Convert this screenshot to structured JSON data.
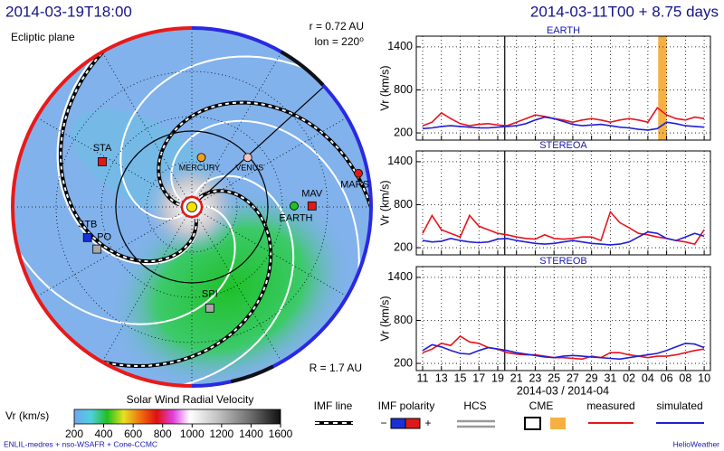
{
  "header": {
    "title_left": "2014-03-19T18:00",
    "title_right": "2014-03-11T00 + 8.75 days"
  },
  "chart_data": [
    {
      "type": "scatter",
      "subtitle": "Ecliptic plane",
      "annotations": [
        "r = 0.72 AU",
        "lon = 220⁰",
        "R = 1.7 AU"
      ],
      "xlim": [
        -1.7,
        1.7
      ],
      "ylim": [
        -1.7,
        1.7
      ],
      "points": [
        {
          "name": "MERCURY",
          "x": 0.09,
          "y": 0.47,
          "color": "#f0a020",
          "marker": "circle"
        },
        {
          "name": "VENUS",
          "x": 0.53,
          "y": 0.47,
          "color": "#f4c0c0",
          "marker": "circle"
        },
        {
          "name": "EARTH",
          "x": 0.97,
          "y": 0.01,
          "color": "#22c022",
          "marker": "circle"
        },
        {
          "name": "MAV",
          "x": 1.14,
          "y": 0.01,
          "color": "#e01818",
          "marker": "square"
        },
        {
          "name": "MARS",
          "x": 1.58,
          "y": 0.32,
          "color": "#e01818",
          "marker": "circle"
        },
        {
          "name": "STA",
          "x": -0.85,
          "y": 0.43,
          "color": "#e01818",
          "marker": "square"
        },
        {
          "name": "STB",
          "x": -0.99,
          "y": -0.29,
          "color": "#1830d8",
          "marker": "square"
        },
        {
          "name": "PO",
          "x": -0.9,
          "y": -0.4,
          "color": "#a8a8a8",
          "marker": "square"
        },
        {
          "name": "SPI",
          "x": 0.17,
          "y": -0.96,
          "color": "#a8a8a8",
          "marker": "square"
        }
      ]
    },
    {
      "type": "line",
      "title": "EARTH",
      "ylabel": "Vr (km/s)",
      "xlabel": "2014-03 / 2014-04",
      "categories": [
        "11",
        null,
        "13",
        null,
        "15",
        null,
        "17",
        null,
        "19",
        null,
        "21",
        null,
        "23",
        null,
        "25",
        null,
        "27",
        null,
        "29",
        null,
        "31",
        null,
        "02",
        null,
        "04",
        null,
        "06",
        null,
        "08",
        null,
        "10"
      ],
      "ylim": [
        100,
        1550
      ],
      "yticks": [
        200,
        800,
        1400
      ],
      "grid": true,
      "marker_x": 8.75,
      "cme_span": [
        25.1,
        26.0
      ],
      "series": [
        {
          "name": "measured",
          "color": "#e8141c",
          "values": [
            300,
            350,
            480,
            400,
            330,
            300,
            320,
            330,
            310,
            300,
            350,
            400,
            450,
            430,
            400,
            380,
            350,
            380,
            400,
            380,
            350,
            380,
            400,
            380,
            350,
            550,
            450,
            400,
            380,
            420,
            400
          ]
        },
        {
          "name": "simulated",
          "color": "#1f1fd6",
          "values": [
            260,
            270,
            290,
            300,
            290,
            280,
            270,
            270,
            280,
            290,
            300,
            330,
            380,
            420,
            400,
            360,
            320,
            300,
            310,
            320,
            300,
            280,
            270,
            250,
            240,
            260,
            350,
            330,
            300,
            290,
            280
          ]
        }
      ]
    },
    {
      "type": "line",
      "title": "STEREOA",
      "ylabel": "Vr (km/s)",
      "categories": [
        "11",
        null,
        "13",
        null,
        "15",
        null,
        "17",
        null,
        "19",
        null,
        "21",
        null,
        "23",
        null,
        "25",
        null,
        "27",
        null,
        "29",
        null,
        "31",
        null,
        "02",
        null,
        "04",
        null,
        "06",
        null,
        "08",
        null,
        "10"
      ],
      "ylim": [
        100,
        1550
      ],
      "yticks": [
        200,
        800,
        1400
      ],
      "grid": true,
      "marker_x": 8.75,
      "series": [
        {
          "name": "measured",
          "color": "#e8141c",
          "values": [
            400,
            650,
            450,
            400,
            350,
            650,
            500,
            450,
            400,
            380,
            350,
            330,
            320,
            380,
            330,
            320,
            330,
            350,
            350,
            300,
            700,
            550,
            480,
            400,
            380,
            350,
            330,
            300,
            280,
            250,
            450
          ]
        },
        {
          "name": "simulated",
          "color": "#1f1fd6",
          "values": [
            300,
            280,
            290,
            330,
            300,
            280,
            270,
            280,
            320,
            330,
            300,
            280,
            260,
            250,
            260,
            280,
            300,
            280,
            260,
            250,
            240,
            250,
            280,
            350,
            420,
            400,
            330,
            300,
            350,
            400,
            360
          ]
        }
      ]
    },
    {
      "type": "line",
      "title": "STEREOB",
      "ylabel": "Vr (km/s)",
      "categories": [
        "11",
        null,
        "13",
        null,
        "15",
        null,
        "17",
        null,
        "19",
        null,
        "21",
        null,
        "23",
        null,
        "25",
        null,
        "27",
        null,
        "29",
        null,
        "31",
        null,
        "02",
        null,
        "04",
        null,
        "06",
        null,
        "08",
        null,
        "10"
      ],
      "ylim": [
        100,
        1550
      ],
      "yticks": [
        200,
        800,
        1400
      ],
      "grid": true,
      "marker_x": 8.75,
      "series": [
        {
          "name": "measured",
          "color": "#e8141c",
          "values": [
            350,
            400,
            480,
            450,
            580,
            500,
            480,
            420,
            400,
            350,
            330,
            320,
            320,
            300,
            280,
            280,
            270,
            260,
            300,
            280,
            350,
            350,
            320,
            300,
            280,
            300,
            300,
            320,
            350,
            380,
            400
          ]
        },
        {
          "name": "simulated",
          "color": "#1f1fd6",
          "values": [
            380,
            460,
            430,
            380,
            340,
            330,
            380,
            420,
            400,
            380,
            350,
            330,
            310,
            290,
            280,
            300,
            310,
            300,
            290,
            280,
            270,
            260,
            280,
            300,
            320,
            340,
            380,
            430,
            480,
            470,
            420
          ]
        }
      ]
    }
  ],
  "colorbar": {
    "title": "Solar Wind Radial Velocity",
    "label": "Vr (km/s)",
    "lim": [
      200,
      1600
    ],
    "ticks": [
      200,
      400,
      600,
      800,
      1000,
      1200,
      1400,
      1600
    ]
  },
  "legend": {
    "imf_line": "IMF line",
    "imf_polarity": "IMF polarity",
    "minus": "−",
    "plus": "+",
    "hcs": "HCS",
    "cme": "CME"
  },
  "footer": {
    "left": "ENLIL-medres + nso-WSAFR + Cone-CCMC",
    "right": "HelioWeather"
  }
}
